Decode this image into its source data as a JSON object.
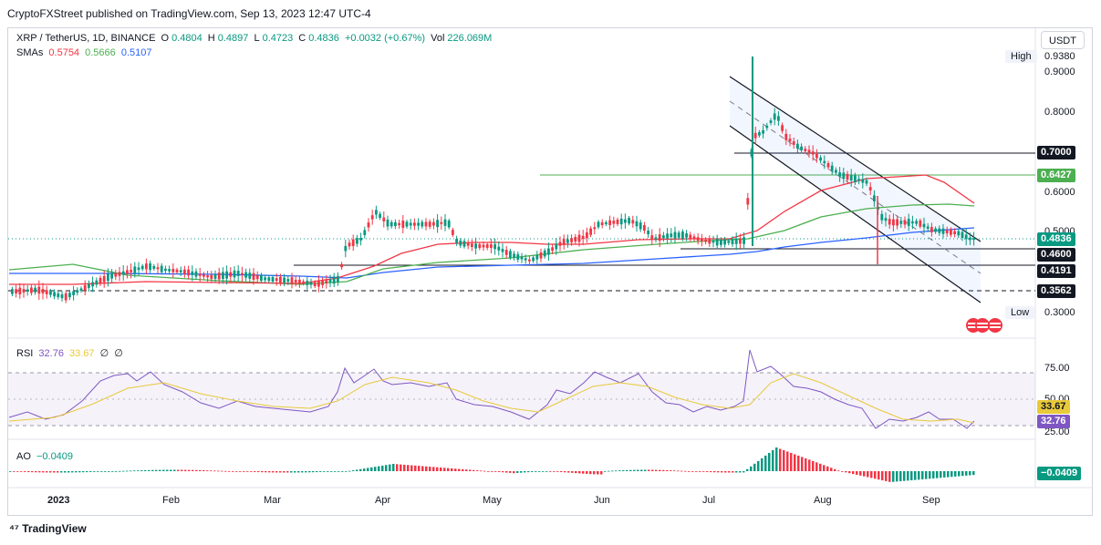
{
  "header": {
    "publisher": "CryptoFXStreet published on TradingView.com, Sep 13, 2023 12:47 UTC-4"
  },
  "symbol": {
    "title": "XRP / TetherUS, 1D, BINANCE",
    "o_label": "O",
    "o_value": "0.4804",
    "h_label": "H",
    "h_value": "0.4897",
    "l_label": "L",
    "l_value": "0.4723",
    "c_label": "C",
    "c_value": "0.4836",
    "change": "+0.0032 (+0.67%)",
    "vol_label": "Vol",
    "vol_value": "226.069M"
  },
  "smas": {
    "label": "SMAs",
    "values": [
      "0.5754",
      "0.5666",
      "0.5107"
    ],
    "colors": [
      "#f23645",
      "#4caf50",
      "#2962ff"
    ]
  },
  "currency_button": "USDT",
  "price_axis": {
    "ticks": [
      "0.9380",
      "0.9000",
      "0.8000",
      "0.7000",
      "0.6427",
      "0.6000",
      "0.5000",
      "0.4836",
      "0.4600",
      "0.4191",
      "0.3562",
      "0.3000"
    ],
    "high_label": "High",
    "high_value": "0.9380",
    "low_label": "Low",
    "low_value": "0.3000"
  },
  "price_tags": {
    "t0700": "0.7000",
    "t06427": "0.6427",
    "t04836": "0.4836",
    "t04600": "0.4600",
    "t04191": "0.4191",
    "t03562": "0.3562"
  },
  "rsi": {
    "label": "RSI",
    "value": "32.76",
    "ma": "33.67",
    "extra1": "∅",
    "extra2": "∅",
    "ticks": [
      "75.00",
      "50.00",
      "25.00"
    ],
    "tag_ma": "33.67",
    "tag_value": "32.76"
  },
  "ao": {
    "label": "AO",
    "value": "−0.0409",
    "tag": "−0.0409"
  },
  "time_axis": [
    "2023",
    "Feb",
    "Mar",
    "Apr",
    "May",
    "Jun",
    "Jul",
    "Aug",
    "Sep"
  ],
  "footer": {
    "brand": "TradingView"
  },
  "colors": {
    "up": "#089981",
    "down": "#f23645",
    "sma_red": "#f23645",
    "sma_green": "#4caf50",
    "sma_blue": "#2962ff",
    "rsi": "#7e57c2",
    "rsi_ma": "#e8c93a",
    "level_green": "#4caf50"
  }
}
